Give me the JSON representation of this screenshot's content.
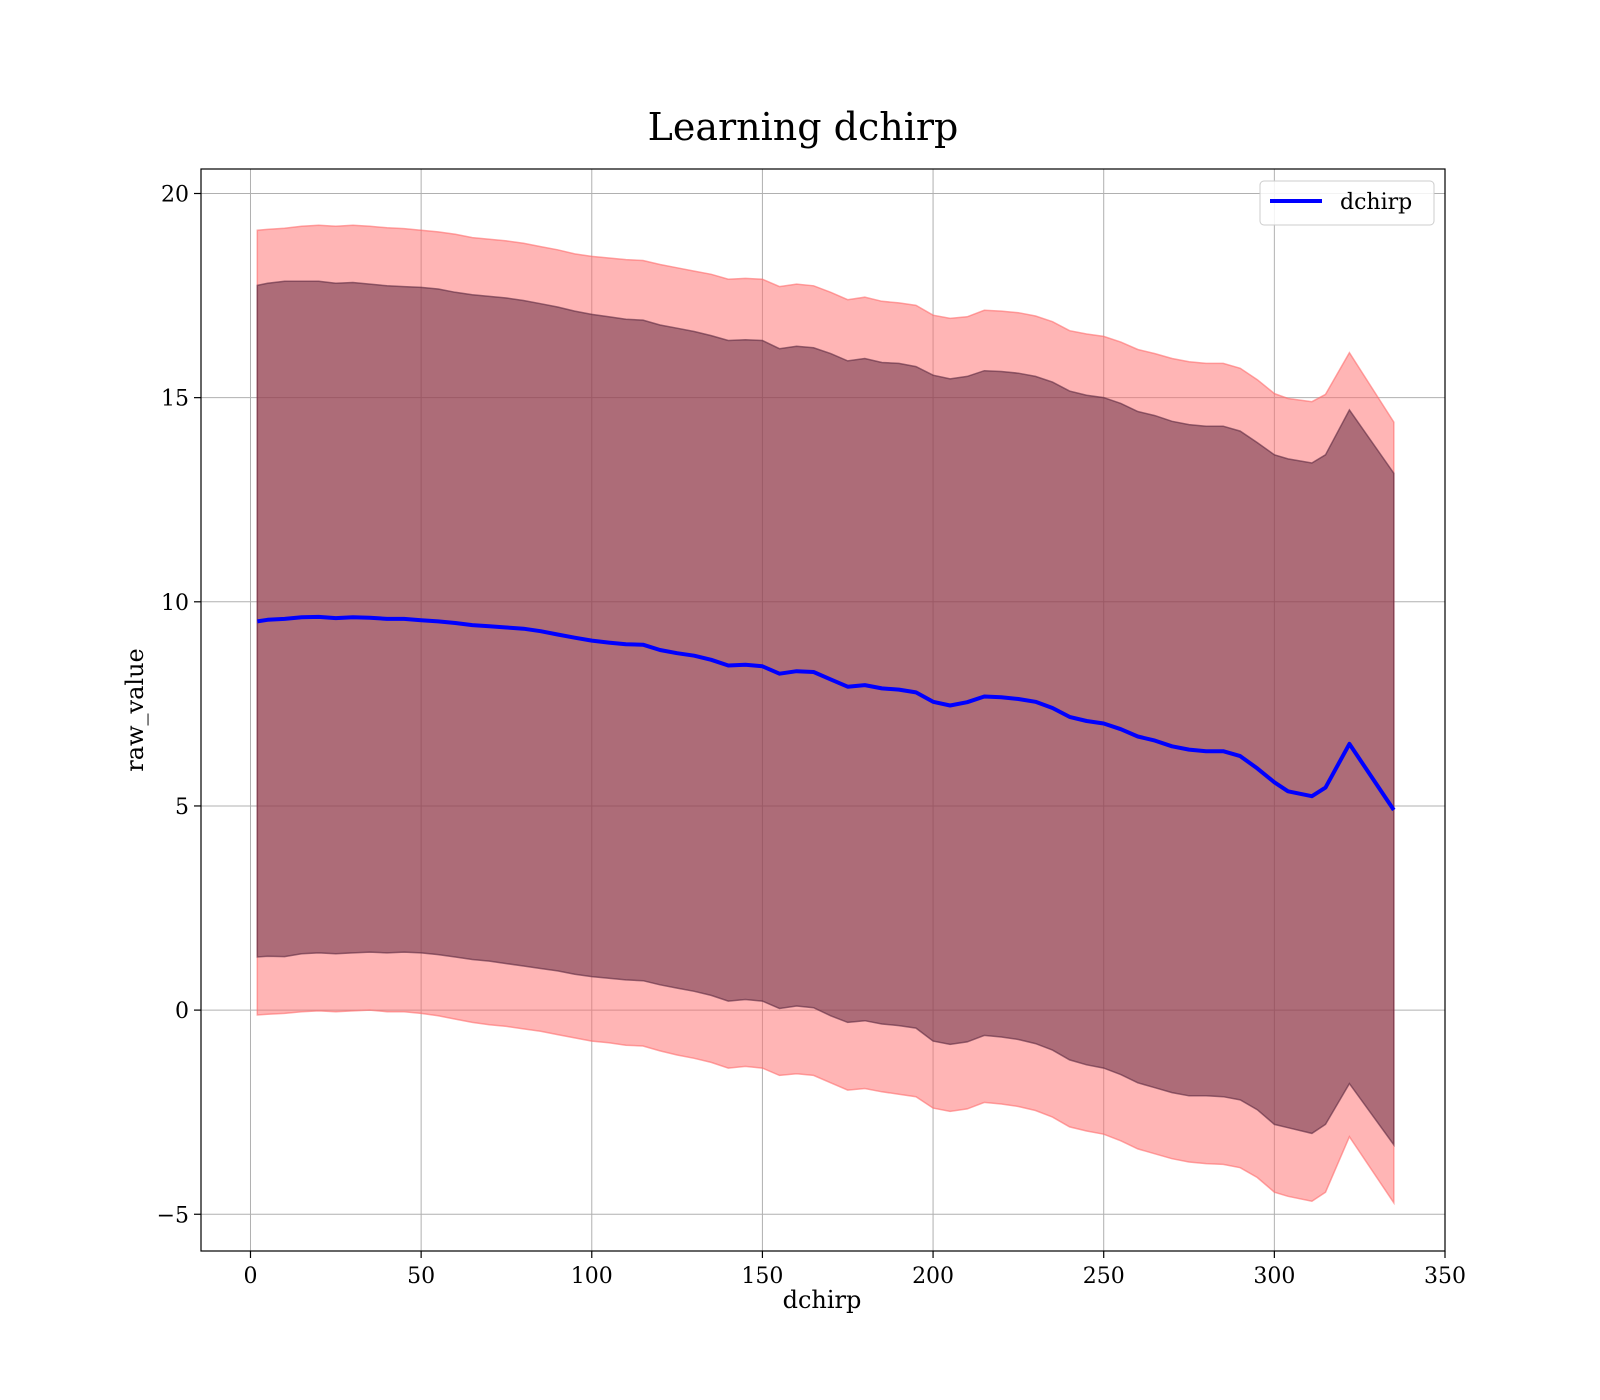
{
  "chart_data": {
    "type": "line",
    "title": "Learning dchirp",
    "xlabel": "dchirp",
    "ylabel": "raw_value",
    "xlim": [
      -14.5,
      350
    ],
    "ylim": [
      -5.9,
      20.6
    ],
    "xticks": [
      0,
      50,
      100,
      150,
      200,
      250,
      300,
      350
    ],
    "yticks": [
      -5,
      0,
      5,
      10,
      15,
      20
    ],
    "xtick_labels": [
      "0",
      "50",
      "100",
      "150",
      "200",
      "250",
      "300",
      "350"
    ],
    "ytick_labels": [
      "−5",
      "0",
      "5",
      "10",
      "15",
      "20"
    ],
    "grid": true,
    "legend": {
      "position": "top-right",
      "entries": [
        {
          "name": "dchirp",
          "color": "#0000ff"
        }
      ]
    },
    "colors": {
      "line": "#0000ff",
      "outer_band": "#ff6b6b",
      "inner_band": "#6a2f45"
    },
    "series": [
      {
        "name": "dchirp",
        "x": [
          2,
          5,
          10,
          15,
          20,
          25,
          30,
          35,
          40,
          45,
          50,
          55,
          60,
          65,
          70,
          75,
          80,
          85,
          90,
          95,
          100,
          105,
          110,
          115,
          120,
          125,
          130,
          135,
          140,
          145,
          150,
          155,
          160,
          165,
          170,
          175,
          180,
          185,
          190,
          195,
          200,
          205,
          210,
          215,
          220,
          225,
          230,
          235,
          240,
          245,
          250,
          255,
          260,
          265,
          270,
          275,
          280,
          285,
          290,
          295,
          300,
          304,
          311,
          315,
          322,
          335
        ],
        "y": [
          9.52,
          9.56,
          9.58,
          9.62,
          9.63,
          9.6,
          9.62,
          9.61,
          9.58,
          9.58,
          9.55,
          9.52,
          9.48,
          9.43,
          9.4,
          9.37,
          9.34,
          9.28,
          9.2,
          9.12,
          9.05,
          9.0,
          8.96,
          8.95,
          8.82,
          8.74,
          8.68,
          8.58,
          8.44,
          8.46,
          8.42,
          8.24,
          8.3,
          8.28,
          8.1,
          7.92,
          7.96,
          7.88,
          7.85,
          7.78,
          7.55,
          7.46,
          7.54,
          7.68,
          7.66,
          7.62,
          7.55,
          7.4,
          7.18,
          7.08,
          7.02,
          6.88,
          6.7,
          6.6,
          6.46,
          6.38,
          6.34,
          6.34,
          6.22,
          5.92,
          5.58,
          5.36,
          5.24,
          5.45,
          6.52,
          4.9
        ],
        "inner_upper": [
          17.75,
          17.8,
          17.85,
          17.85,
          17.85,
          17.8,
          17.82,
          17.78,
          17.74,
          17.72,
          17.7,
          17.66,
          17.58,
          17.52,
          17.48,
          17.44,
          17.38,
          17.3,
          17.22,
          17.12,
          17.04,
          16.98,
          16.92,
          16.9,
          16.78,
          16.7,
          16.62,
          16.52,
          16.4,
          16.42,
          16.4,
          16.2,
          16.26,
          16.22,
          16.08,
          15.9,
          15.96,
          15.86,
          15.84,
          15.76,
          15.55,
          15.46,
          15.52,
          15.66,
          15.64,
          15.6,
          15.52,
          15.38,
          15.16,
          15.06,
          15.0,
          14.86,
          14.66,
          14.56,
          14.42,
          14.34,
          14.3,
          14.3,
          14.18,
          13.9,
          13.6,
          13.5,
          13.4,
          13.6,
          14.7,
          13.15
        ],
        "inner_lower": [
          1.3,
          1.32,
          1.31,
          1.38,
          1.4,
          1.38,
          1.4,
          1.42,
          1.4,
          1.42,
          1.4,
          1.36,
          1.3,
          1.24,
          1.2,
          1.14,
          1.08,
          1.02,
          0.96,
          0.88,
          0.82,
          0.78,
          0.74,
          0.72,
          0.62,
          0.54,
          0.46,
          0.36,
          0.22,
          0.26,
          0.22,
          0.04,
          0.1,
          0.06,
          -0.14,
          -0.3,
          -0.26,
          -0.34,
          -0.38,
          -0.44,
          -0.76,
          -0.84,
          -0.78,
          -0.62,
          -0.66,
          -0.72,
          -0.82,
          -0.98,
          -1.22,
          -1.34,
          -1.42,
          -1.58,
          -1.78,
          -1.9,
          -2.02,
          -2.1,
          -2.1,
          -2.12,
          -2.2,
          -2.44,
          -2.8,
          -2.88,
          -3.02,
          -2.8,
          -1.8,
          -3.3
        ],
        "outer_upper": [
          19.1,
          19.12,
          19.15,
          19.2,
          19.22,
          19.2,
          19.22,
          19.2,
          19.16,
          19.14,
          19.1,
          19.06,
          19.0,
          18.92,
          18.88,
          18.84,
          18.78,
          18.7,
          18.62,
          18.52,
          18.46,
          18.42,
          18.38,
          18.36,
          18.26,
          18.18,
          18.1,
          18.02,
          17.9,
          17.92,
          17.9,
          17.72,
          17.78,
          17.74,
          17.58,
          17.4,
          17.46,
          17.36,
          17.32,
          17.26,
          17.02,
          16.94,
          16.98,
          17.14,
          17.12,
          17.08,
          17.0,
          16.86,
          16.64,
          16.56,
          16.5,
          16.36,
          16.18,
          16.08,
          15.96,
          15.88,
          15.84,
          15.84,
          15.72,
          15.44,
          15.1,
          14.98,
          14.9,
          15.08,
          16.1,
          14.4
        ],
        "outer_lower": [
          -0.12,
          -0.1,
          -0.08,
          -0.04,
          -0.02,
          -0.04,
          -0.02,
          0.0,
          -0.04,
          -0.04,
          -0.08,
          -0.14,
          -0.22,
          -0.3,
          -0.36,
          -0.4,
          -0.46,
          -0.52,
          -0.6,
          -0.68,
          -0.76,
          -0.8,
          -0.86,
          -0.88,
          -1.0,
          -1.1,
          -1.18,
          -1.28,
          -1.42,
          -1.38,
          -1.42,
          -1.6,
          -1.56,
          -1.6,
          -1.78,
          -1.96,
          -1.92,
          -2.0,
          -2.06,
          -2.12,
          -2.4,
          -2.48,
          -2.42,
          -2.26,
          -2.3,
          -2.36,
          -2.46,
          -2.62,
          -2.86,
          -2.96,
          -3.04,
          -3.2,
          -3.4,
          -3.52,
          -3.64,
          -3.72,
          -3.76,
          -3.78,
          -3.86,
          -4.1,
          -4.46,
          -4.56,
          -4.68,
          -4.46,
          -3.1,
          -4.72
        ]
      }
    ]
  }
}
